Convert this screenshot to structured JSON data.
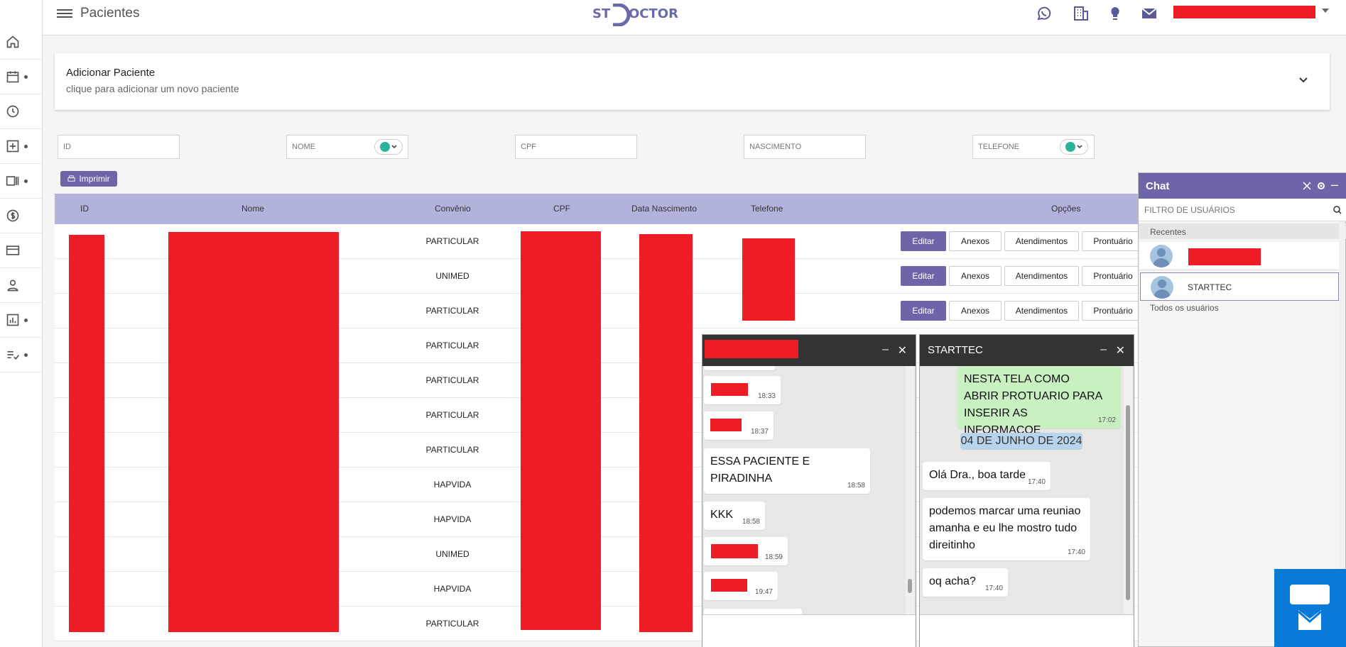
{
  "header": {
    "title": "Pacientes",
    "logo": {
      "left": "ST",
      "right": "OCTOR"
    }
  },
  "sidebar": {
    "items": [
      {
        "icon": "home-icon"
      },
      {
        "icon": "calendar-icon"
      },
      {
        "icon": "clock-icon"
      },
      {
        "icon": "medical-plus-icon"
      },
      {
        "icon": "id-card-icon"
      },
      {
        "icon": "dollar-icon"
      },
      {
        "icon": "credit-card-icon"
      },
      {
        "icon": "person-icon"
      },
      {
        "icon": "bar-chart-icon"
      },
      {
        "icon": "checklist-icon"
      }
    ]
  },
  "add_patient": {
    "title": "Adicionar Paciente",
    "subtitle": "clique para adicionar um novo paciente"
  },
  "filters": {
    "id": "ID",
    "nome": "NOME",
    "cpf": "CPF",
    "nascimento": "NASCIMENTO",
    "telefone": "TELEFONE"
  },
  "print_button": "Imprimir",
  "table": {
    "headers": [
      "ID",
      "Nome",
      "Convênio",
      "CPF",
      "Data Nascimento",
      "Telefone",
      "Opções"
    ],
    "rows": [
      {
        "convenio": "PARTICULAR",
        "has_options": true
      },
      {
        "convenio": "UNIMED",
        "has_options": true
      },
      {
        "convenio": "PARTICULAR",
        "has_options": true
      },
      {
        "convenio": "PARTICULAR",
        "has_options": false
      },
      {
        "convenio": "PARTICULAR",
        "has_options": false
      },
      {
        "convenio": "PARTICULAR",
        "has_options": false
      },
      {
        "convenio": "PARTICULAR",
        "has_options": false
      },
      {
        "convenio": "HAPVIDA",
        "has_options": false
      },
      {
        "convenio": "HAPVIDA",
        "has_options": false
      },
      {
        "convenio": "UNIMED",
        "has_options": false
      },
      {
        "convenio": "HAPVIDA",
        "has_options": false
      },
      {
        "convenio": "PARTICULAR",
        "has_options": false
      }
    ],
    "options": {
      "editar": "Editar",
      "anexos": "Anexos",
      "atendimentos": "Atendimentos",
      "prontuario": "Prontuário"
    }
  },
  "chat_window_1": {
    "messages": [
      {
        "text": "",
        "time": "18:33"
      },
      {
        "text": "",
        "time": "18:37"
      },
      {
        "text": "ESSA PACIENTE E PIRADINHA",
        "time": "18:58"
      },
      {
        "text": "KKK",
        "time": "18:58"
      },
      {
        "text": "",
        "time": "18:59"
      },
      {
        "text": "",
        "time": "19:47"
      }
    ]
  },
  "chat_window_2": {
    "title": "STARTTEC",
    "messages": [
      {
        "text": "NESTA TELA COMO ABRIR PROTUARIO PARA INSERIR AS INFORMACOE",
        "time": "17:02",
        "mine": true
      },
      {
        "date": "04 DE JUNHO DE 2024"
      },
      {
        "text": "Olá Dra., boa tarde",
        "time": "17:40"
      },
      {
        "text": "podemos marcar uma reuniao amanha e eu lhe mostro tudo direitinho",
        "time": "17:40"
      },
      {
        "text": "oq acha?",
        "time": "17:40"
      }
    ]
  },
  "chat_panel": {
    "title": "Chat",
    "filter_placeholder": "FILTRO DE USUÁRIOS",
    "recentes": "Recentes",
    "users": [
      {
        "name": ""
      },
      {
        "name": "STARTTEC"
      }
    ],
    "todos": "Todos os usuários"
  },
  "colors": {
    "accent": "#6e64a8",
    "table_header": "#b2b3dd",
    "chat_head": "#333333",
    "launcher": "#0a7ad8"
  }
}
